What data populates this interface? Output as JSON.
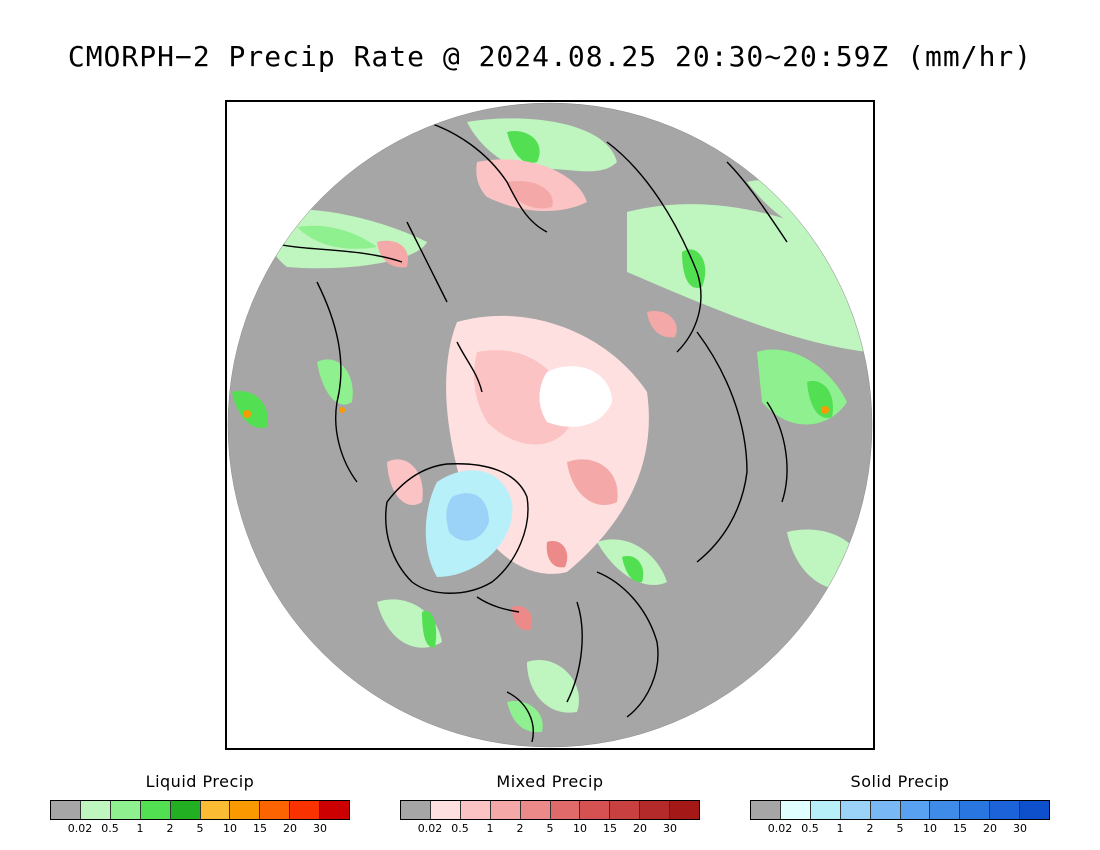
{
  "title": "CMORPH−2 Precip Rate @ 2024.08.25 20:30~20:59Z (mm/hr)",
  "map": {
    "projection": "polar stereographic (north pole)",
    "no_data_color": "#ffffff",
    "background_color": "#a6a6a6"
  },
  "legends": [
    {
      "title": "Liquid Precip",
      "colors": [
        "#a6a6a6",
        "#bff5bf",
        "#8ef08e",
        "#52e052",
        "#22b022",
        "#fbbb33",
        "#fa9a00",
        "#fb6400",
        "#f93200",
        "#cc0000"
      ],
      "labels": [
        "0.02",
        "0.5",
        "1",
        "2",
        "5",
        "10",
        "15",
        "20",
        "30"
      ]
    },
    {
      "title": "Mixed Precip",
      "colors": [
        "#a6a6a6",
        "#fee0e0",
        "#fbc3c3",
        "#f4a8a8",
        "#ec8a8a",
        "#e06a6a",
        "#d65252",
        "#c84040",
        "#b42a2a",
        "#a41818"
      ],
      "labels": [
        "0.02",
        "0.5",
        "1",
        "2",
        "5",
        "10",
        "15",
        "20",
        "30"
      ]
    },
    {
      "title": "Solid Precip",
      "colors": [
        "#a6a6a6",
        "#e0fefe",
        "#b8f0fa",
        "#9ad2f8",
        "#78b8f4",
        "#58a0f0",
        "#3e8ce8",
        "#2a76e0",
        "#1c62d8",
        "#0e50cc"
      ],
      "labels": [
        "0.02",
        "0.5",
        "1",
        "2",
        "5",
        "10",
        "15",
        "20",
        "30"
      ]
    }
  ]
}
